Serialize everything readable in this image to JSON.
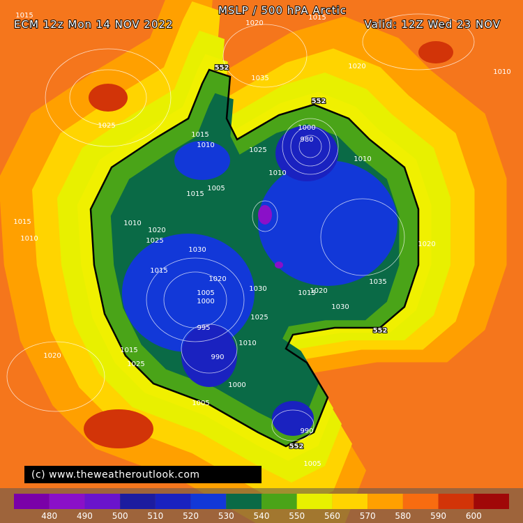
{
  "header": {
    "title": "MSLP / 500 hPA Arctic",
    "run": "ECM 12z Mon 14 NOV 2022",
    "valid": "Valid: 12Z Wed 23 NOV"
  },
  "copyright": "(c)  www.theweatheroutlook.com",
  "legend": {
    "colors": [
      "#7a00a8",
      "#8a10c8",
      "#6a14cc",
      "#1c1ca0",
      "#1a22c0",
      "#1238d8",
      "#0a6a46",
      "#4aa418",
      "#e8f000",
      "#ffd400",
      "#ffa000",
      "#f86c10",
      "#d23408",
      "#a00808"
    ],
    "labels": [
      480,
      490,
      500,
      510,
      520,
      530,
      540,
      550,
      560,
      570,
      580,
      590,
      600
    ]
  },
  "contour_labels": [
    "552",
    "552",
    "552",
    "552",
    "1015",
    "1020",
    "1015",
    "1025",
    "1035",
    "1020",
    "1010",
    "1015",
    "1010",
    "1000",
    "980",
    "1025",
    "1010",
    "1005",
    "1015",
    "1010",
    "1020",
    "1025",
    "1030",
    "1015",
    "1005",
    "1000",
    "995",
    "1020",
    "1030",
    "1035",
    "1025",
    "1030",
    "1010",
    "990",
    "1000",
    "1005",
    "1020",
    "1015",
    "1010",
    "990",
    "1005",
    "1010",
    "1015",
    "1020",
    "1015",
    "1025",
    "1020"
  ]
}
